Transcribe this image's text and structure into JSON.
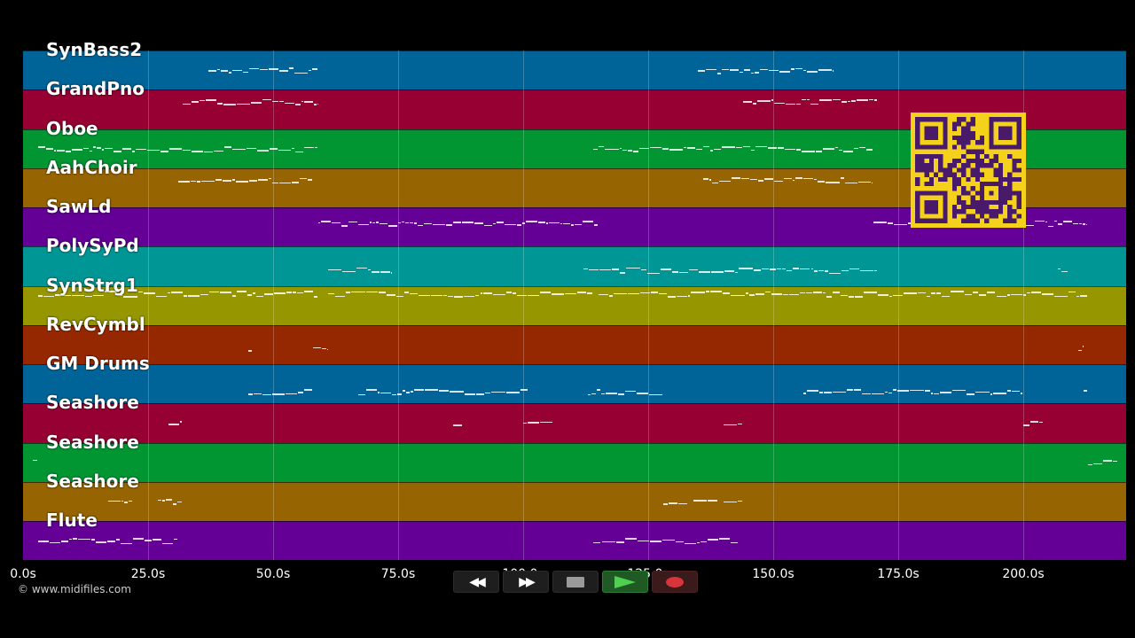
{
  "tracks": [
    {
      "name": "SynBass2",
      "color": "#016498"
    },
    {
      "name": "GrandPno",
      "color": "#960032"
    },
    {
      "name": "Oboe",
      "color": "#019632"
    },
    {
      "name": "AahChoir",
      "color": "#966401"
    },
    {
      "name": "SawLd",
      "color": "#640096"
    },
    {
      "name": "PolySyPd",
      "color": "#019696"
    },
    {
      "name": "SynStrg1",
      "color": "#969601"
    },
    {
      "name": "RevCymbl",
      "color": "#962801"
    },
    {
      "name": "GM Drums",
      "color": "#016498"
    },
    {
      "name": "Seashore",
      "color": "#960032"
    },
    {
      "name": "Seashore",
      "color": "#019632"
    },
    {
      "name": "Seashore",
      "color": "#966401"
    },
    {
      "name": "Flute",
      "color": "#640096"
    }
  ],
  "axis": {
    "ticks": [
      "0.0s",
      "25.0s",
      "50.0s",
      "75.0s",
      "100.0s",
      "125.0s",
      "150.0s",
      "175.0s",
      "200.0s"
    ]
  },
  "copyright": "© www.midifiles.com",
  "transport": {
    "rewind_icon": "rewind-icon",
    "fastforward_icon": "fast-forward-icon",
    "stop_icon": "stop-icon",
    "play_icon": "play-icon",
    "record_icon": "record-icon"
  },
  "notes": [
    [
      [
        37,
        59,
        0.5
      ],
      [
        135,
        162,
        0.5
      ]
    ],
    [
      [
        32,
        59,
        0.3
      ],
      [
        144,
        171,
        0.3
      ]
    ],
    [
      [
        3,
        59,
        0.5
      ],
      [
        114,
        170,
        0.5
      ]
    ],
    [
      [
        31,
        58,
        0.3
      ],
      [
        136,
        170,
        0.3
      ]
    ],
    [
      [
        59,
        115,
        0.4
      ],
      [
        170,
        213,
        0.4
      ]
    ],
    [
      [
        61,
        74,
        0.6
      ],
      [
        112,
        171,
        0.6
      ],
      [
        207,
        209,
        0.6
      ]
    ],
    [
      [
        3,
        59,
        0.2
      ],
      [
        61,
        114,
        0.2
      ],
      [
        115,
        213,
        0.2
      ]
    ],
    [
      [
        45,
        46,
        0.6
      ],
      [
        58,
        61,
        0.6
      ],
      [
        211,
        212,
        0.6
      ]
    ],
    [
      [
        45,
        58,
        0.7
      ],
      [
        67,
        101,
        0.7
      ],
      [
        113,
        128,
        0.7
      ],
      [
        156,
        200,
        0.7
      ],
      [
        212,
        213,
        0.7
      ]
    ],
    [
      [
        29,
        32,
        0.5
      ],
      [
        86,
        88,
        0.5
      ],
      [
        100,
        106,
        0.5
      ],
      [
        140,
        144,
        0.5
      ],
      [
        200,
        204,
        0.5
      ]
    ],
    [
      [
        2,
        3,
        0.5
      ],
      [
        213,
        219,
        0.5
      ]
    ],
    [
      [
        17,
        22,
        0.5
      ],
      [
        27,
        32,
        0.5
      ],
      [
        128,
        133,
        0.5
      ],
      [
        134,
        139,
        0.5
      ],
      [
        140,
        144,
        0.5
      ]
    ],
    [
      [
        3,
        31,
        0.5
      ],
      [
        114,
        143,
        0.5
      ]
    ]
  ]
}
